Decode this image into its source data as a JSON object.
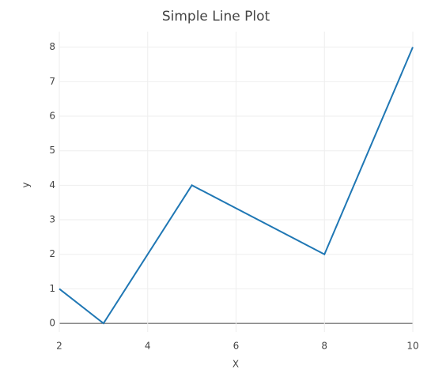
{
  "chart_data": {
    "type": "line",
    "title": "Simple Line Plot",
    "x_label": "X",
    "y_label": "y",
    "x": [
      2,
      3,
      5,
      8,
      10
    ],
    "series": [
      {
        "color": "#1f77b4",
        "values": [
          1,
          0,
          4,
          2,
          8
        ]
      }
    ],
    "xlim": [
      2,
      10
    ],
    "xticks": [
      2,
      4,
      6,
      8,
      10
    ],
    "ylim": [
      -0.25,
      8.45
    ],
    "yticks": [
      0,
      1,
      2,
      3,
      4,
      5,
      6,
      7,
      8
    ],
    "grid": true
  }
}
